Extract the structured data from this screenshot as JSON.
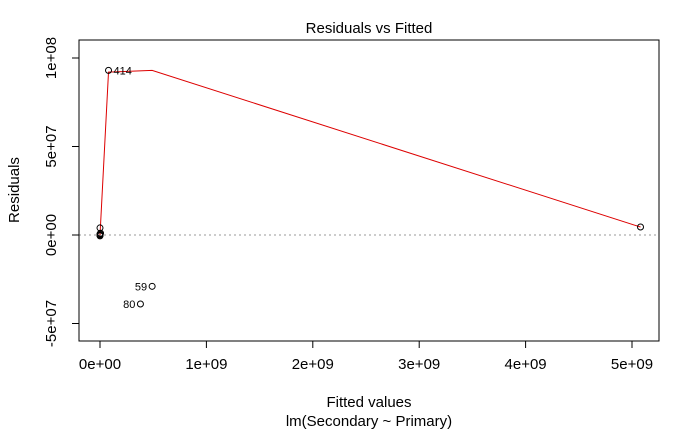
{
  "chart_data": {
    "type": "scatter",
    "title": "Residuals vs Fitted",
    "xlabel": "Fitted values",
    "subtitle": "lm(Secondary ~ Primary)",
    "ylabel": "Residuals",
    "xlim": [
      -200000000,
      5150000000
    ],
    "ylim": [
      -60000000,
      110000000
    ],
    "x_ticks": [
      {
        "value": 0,
        "label": "0e+00"
      },
      {
        "value": 1000000000,
        "label": "1e+09"
      },
      {
        "value": 2000000000,
        "label": "2e+09"
      },
      {
        "value": 3000000000,
        "label": "3e+09"
      },
      {
        "value": 4000000000,
        "label": "4e+09"
      },
      {
        "value": 5000000000,
        "label": "5e+09"
      }
    ],
    "y_ticks": [
      {
        "value": -50000000,
        "label": "-5e+07"
      },
      {
        "value": 0,
        "label": "0e+00"
      },
      {
        "value": 50000000,
        "label": "5e+07"
      },
      {
        "value": 100000000,
        "label": "1e+08"
      }
    ],
    "points": [
      {
        "x": 0,
        "y": 0
      },
      {
        "x": 0,
        "y": 500000
      },
      {
        "x": 0,
        "y": -500000
      },
      {
        "x": 5000000,
        "y": 1000000
      },
      {
        "x": 0,
        "y": 4000000
      },
      {
        "x": 80000000,
        "y": 93000000,
        "label": "414"
      },
      {
        "x": 490000000,
        "y": -29000000,
        "label": "59"
      },
      {
        "x": 380000000,
        "y": -39000000,
        "label": "80"
      },
      {
        "x": 5080000000,
        "y": 4500000
      }
    ],
    "smoother": {
      "color": "#dd0000",
      "x": [
        0,
        80000000,
        490000000,
        5080000000
      ],
      "y": [
        0,
        92000000,
        93000000,
        4500000
      ]
    },
    "reference_line": {
      "y": 0,
      "style": "dotted",
      "color": "#999999"
    },
    "grid": false
  }
}
